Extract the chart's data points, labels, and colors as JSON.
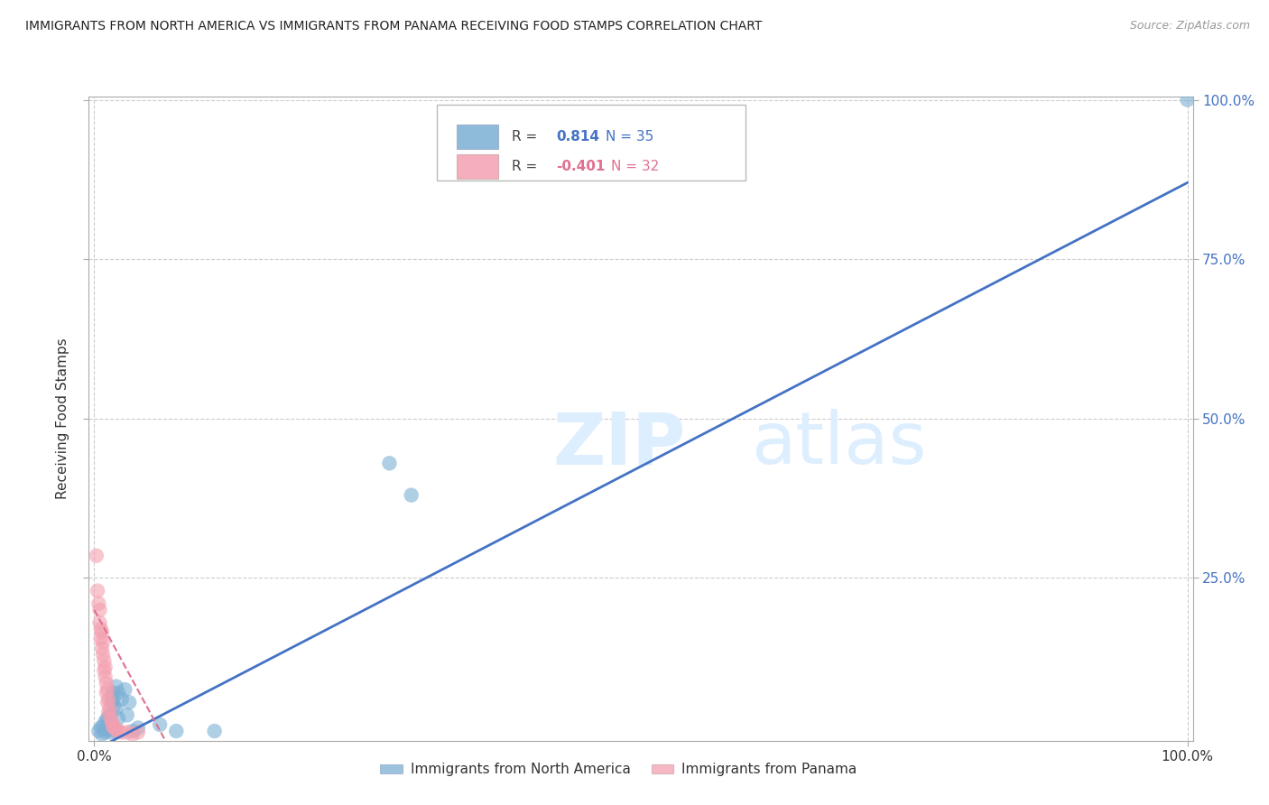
{
  "title": "IMMIGRANTS FROM NORTH AMERICA VS IMMIGRANTS FROM PANAMA RECEIVING FOOD STAMPS CORRELATION CHART",
  "source": "Source: ZipAtlas.com",
  "ylabel": "Receiving Food Stamps",
  "legend_labels": [
    "Immigrants from North America",
    "Immigrants from Panama"
  ],
  "blue_R": "0.814",
  "blue_N": "35",
  "pink_R": "-0.401",
  "pink_N": "32",
  "blue_color": "#7BAFD4",
  "pink_color": "#F4A0B0",
  "blue_line_color": "#4472C4",
  "pink_line_color": "#E07090",
  "background_color": "#FFFFFF",
  "grid_color": "#CCCCCC",
  "blue_dots": [
    [
      0.004,
      0.01
    ],
    [
      0.006,
      0.015
    ],
    [
      0.007,
      0.005
    ],
    [
      0.008,
      0.018
    ],
    [
      0.01,
      0.025
    ],
    [
      0.01,
      0.008
    ],
    [
      0.012,
      0.03
    ],
    [
      0.012,
      0.012
    ],
    [
      0.013,
      0.022
    ],
    [
      0.014,
      0.035
    ],
    [
      0.015,
      0.02
    ],
    [
      0.015,
      0.008
    ],
    [
      0.016,
      0.065
    ],
    [
      0.016,
      0.055
    ],
    [
      0.017,
      0.07
    ],
    [
      0.017,
      0.06
    ],
    [
      0.018,
      0.05
    ],
    [
      0.018,
      0.015
    ],
    [
      0.019,
      0.01
    ],
    [
      0.02,
      0.08
    ],
    [
      0.02,
      0.045
    ],
    [
      0.022,
      0.07
    ],
    [
      0.022,
      0.03
    ],
    [
      0.025,
      0.06
    ],
    [
      0.028,
      0.075
    ],
    [
      0.03,
      0.035
    ],
    [
      0.032,
      0.055
    ],
    [
      0.035,
      0.01
    ],
    [
      0.04,
      0.015
    ],
    [
      0.06,
      0.02
    ],
    [
      0.075,
      0.01
    ],
    [
      0.11,
      0.01
    ],
    [
      0.27,
      0.43
    ],
    [
      0.29,
      0.38
    ],
    [
      1.0,
      1.0
    ]
  ],
  "pink_dots": [
    [
      0.002,
      0.285
    ],
    [
      0.003,
      0.23
    ],
    [
      0.004,
      0.21
    ],
    [
      0.005,
      0.2
    ],
    [
      0.005,
      0.18
    ],
    [
      0.006,
      0.17
    ],
    [
      0.006,
      0.155
    ],
    [
      0.007,
      0.165
    ],
    [
      0.007,
      0.14
    ],
    [
      0.008,
      0.15
    ],
    [
      0.008,
      0.13
    ],
    [
      0.009,
      0.12
    ],
    [
      0.009,
      0.105
    ],
    [
      0.01,
      0.11
    ],
    [
      0.01,
      0.095
    ],
    [
      0.011,
      0.085
    ],
    [
      0.011,
      0.07
    ],
    [
      0.012,
      0.075
    ],
    [
      0.012,
      0.055
    ],
    [
      0.013,
      0.06
    ],
    [
      0.013,
      0.04
    ],
    [
      0.014,
      0.045
    ],
    [
      0.015,
      0.03
    ],
    [
      0.016,
      0.025
    ],
    [
      0.017,
      0.018
    ],
    [
      0.018,
      0.015
    ],
    [
      0.02,
      0.012
    ],
    [
      0.022,
      0.01
    ],
    [
      0.025,
      0.008
    ],
    [
      0.03,
      0.008
    ],
    [
      0.035,
      0.005
    ],
    [
      0.04,
      0.008
    ]
  ],
  "blue_line_x": [
    0.0,
    1.0
  ],
  "blue_line_y": [
    -0.02,
    0.87
  ],
  "pink_line_x": [
    0.0,
    0.065
  ],
  "pink_line_y": [
    0.2,
    -0.005
  ],
  "xlim": [
    -0.005,
    1.005
  ],
  "ylim": [
    -0.005,
    1.005
  ],
  "y_ticks": [
    0.25,
    0.5,
    0.75,
    1.0
  ],
  "x_ticks": [
    0.0,
    1.0
  ],
  "y_tick_labels": [
    "25.0%",
    "50.0%",
    "75.0%",
    "100.0%"
  ],
  "x_tick_labels": [
    "0.0%",
    "100.0%"
  ]
}
